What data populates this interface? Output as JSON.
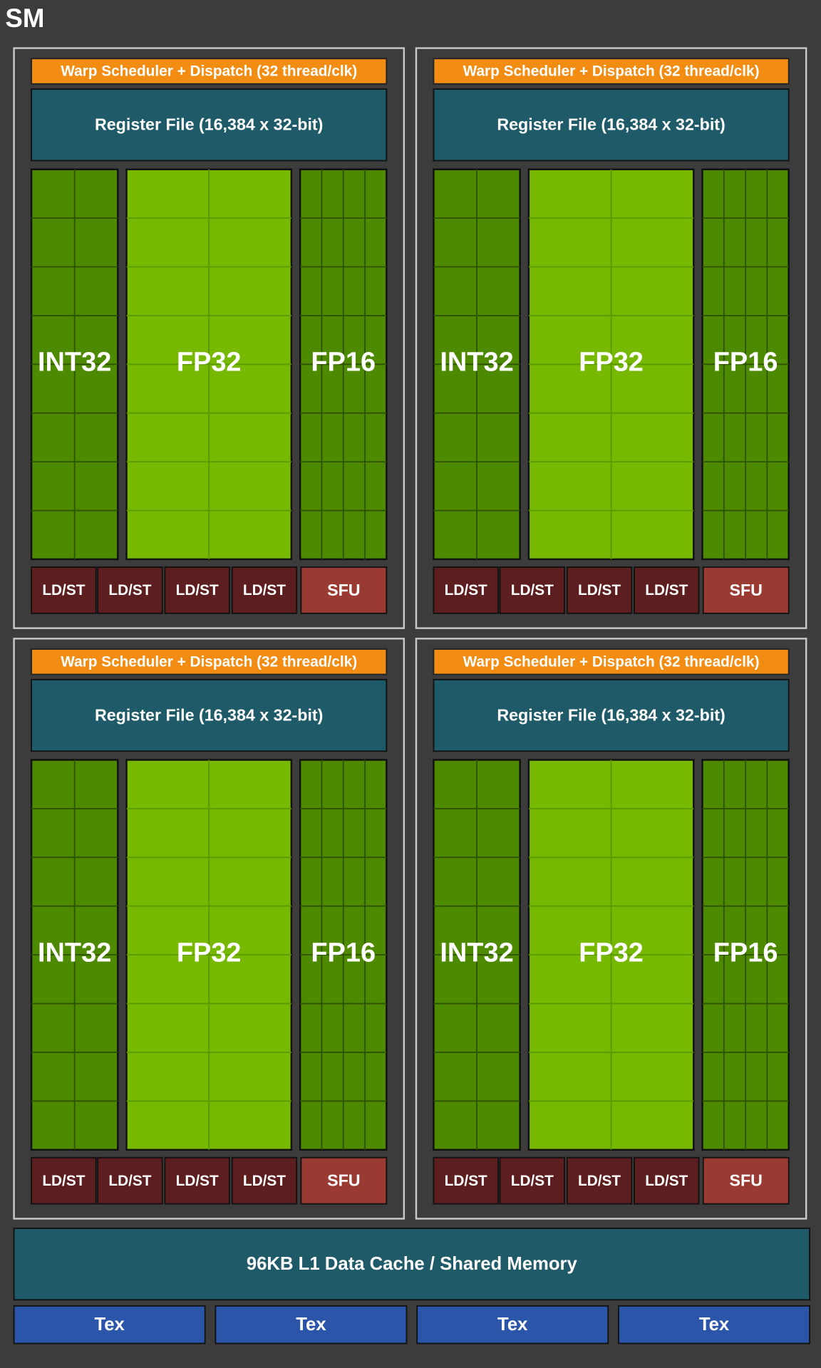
{
  "title": "SM",
  "partitions": [
    {
      "warp_scheduler": "Warp Scheduler + Dispatch (32 thread/clk)",
      "register_file": "Register File (16,384 x 32-bit)",
      "units": [
        "INT32",
        "FP32",
        "FP16"
      ],
      "ldst": [
        "LD/ST",
        "LD/ST",
        "LD/ST",
        "LD/ST"
      ],
      "sfu": "SFU"
    },
    {
      "warp_scheduler": "Warp Scheduler + Dispatch (32 thread/clk)",
      "register_file": "Register File (16,384 x 32-bit)",
      "units": [
        "INT32",
        "FP32",
        "FP16"
      ],
      "ldst": [
        "LD/ST",
        "LD/ST",
        "LD/ST",
        "LD/ST"
      ],
      "sfu": "SFU"
    },
    {
      "warp_scheduler": "Warp Scheduler + Dispatch (32 thread/clk)",
      "register_file": "Register File (16,384 x 32-bit)",
      "units": [
        "INT32",
        "FP32",
        "FP16"
      ],
      "ldst": [
        "LD/ST",
        "LD/ST",
        "LD/ST",
        "LD/ST"
      ],
      "sfu": "SFU"
    },
    {
      "warp_scheduler": "Warp Scheduler + Dispatch (32 thread/clk)",
      "register_file": "Register File (16,384 x 32-bit)",
      "units": [
        "INT32",
        "FP32",
        "FP16"
      ],
      "ldst": [
        "LD/ST",
        "LD/ST",
        "LD/ST",
        "LD/ST"
      ],
      "sfu": "SFU"
    }
  ],
  "l1_cache": "96KB L1 Data Cache / Shared Memory",
  "tex": [
    "Tex",
    "Tex",
    "Tex",
    "Tex"
  ]
}
